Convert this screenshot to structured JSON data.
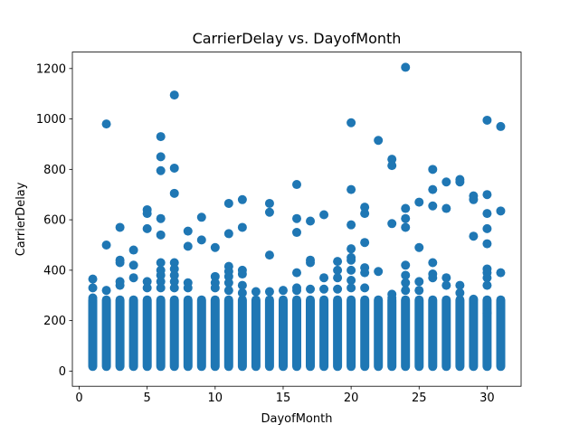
{
  "chart_data": {
    "type": "scatter",
    "title": "CarrierDelay vs. DayofMonth",
    "xlabel": "DayofMonth",
    "ylabel": "CarrierDelay",
    "xlim": [
      -0.5,
      32.5
    ],
    "ylim": [
      -60.3,
      1265.3
    ],
    "x_ticks": [
      0,
      5,
      10,
      15,
      20,
      25,
      30
    ],
    "y_ticks": [
      0,
      200,
      400,
      600,
      800,
      1000,
      1200
    ],
    "grid": false,
    "marker_color": "#1f77b4",
    "series": [
      {
        "points": [
          [
            1,
            290
          ],
          [
            1,
            330
          ],
          [
            1,
            365
          ],
          [
            2,
            980
          ],
          [
            2,
            500
          ],
          [
            2,
            320
          ],
          [
            3,
            570
          ],
          [
            3,
            440
          ],
          [
            3,
            430
          ],
          [
            3,
            355
          ],
          [
            3,
            340
          ],
          [
            4,
            480
          ],
          [
            4,
            420
          ],
          [
            4,
            370
          ],
          [
            5,
            640
          ],
          [
            5,
            625
          ],
          [
            5,
            565
          ],
          [
            5,
            355
          ],
          [
            5,
            330
          ],
          [
            6,
            930
          ],
          [
            6,
            850
          ],
          [
            6,
            795
          ],
          [
            6,
            605
          ],
          [
            6,
            540
          ],
          [
            6,
            430
          ],
          [
            6,
            400
          ],
          [
            6,
            380
          ],
          [
            6,
            355
          ],
          [
            6,
            330
          ],
          [
            7,
            1095
          ],
          [
            7,
            805
          ],
          [
            7,
            705
          ],
          [
            7,
            430
          ],
          [
            7,
            405
          ],
          [
            7,
            380
          ],
          [
            7,
            355
          ],
          [
            7,
            330
          ],
          [
            8,
            555
          ],
          [
            8,
            495
          ],
          [
            8,
            350
          ],
          [
            8,
            330
          ],
          [
            9,
            610
          ],
          [
            9,
            520
          ],
          [
            10,
            490
          ],
          [
            10,
            375
          ],
          [
            10,
            350
          ],
          [
            10,
            330
          ],
          [
            11,
            665
          ],
          [
            11,
            545
          ],
          [
            11,
            415
          ],
          [
            11,
            395
          ],
          [
            11,
            375
          ],
          [
            11,
            350
          ],
          [
            11,
            320
          ],
          [
            12,
            680
          ],
          [
            12,
            570
          ],
          [
            12,
            400
          ],
          [
            12,
            385
          ],
          [
            12,
            340
          ],
          [
            12,
            310
          ],
          [
            13,
            315
          ],
          [
            14,
            665
          ],
          [
            14,
            630
          ],
          [
            14,
            460
          ],
          [
            14,
            315
          ],
          [
            15,
            320
          ],
          [
            16,
            740
          ],
          [
            16,
            605
          ],
          [
            16,
            550
          ],
          [
            16,
            390
          ],
          [
            16,
            330
          ],
          [
            16,
            320
          ],
          [
            17,
            595
          ],
          [
            17,
            440
          ],
          [
            17,
            430
          ],
          [
            17,
            325
          ],
          [
            18,
            620
          ],
          [
            18,
            370
          ],
          [
            18,
            325
          ],
          [
            19,
            435
          ],
          [
            19,
            400
          ],
          [
            19,
            370
          ],
          [
            19,
            325
          ],
          [
            20,
            985
          ],
          [
            20,
            720
          ],
          [
            20,
            580
          ],
          [
            20,
            485
          ],
          [
            20,
            450
          ],
          [
            20,
            440
          ],
          [
            20,
            400
          ],
          [
            20,
            360
          ],
          [
            20,
            330
          ],
          [
            21,
            650
          ],
          [
            21,
            625
          ],
          [
            21,
            510
          ],
          [
            21,
            410
          ],
          [
            21,
            390
          ],
          [
            21,
            330
          ],
          [
            22,
            915
          ],
          [
            22,
            395
          ],
          [
            23,
            840
          ],
          [
            23,
            815
          ],
          [
            23,
            585
          ],
          [
            23,
            305
          ],
          [
            23,
            290
          ],
          [
            24,
            1205
          ],
          [
            24,
            645
          ],
          [
            24,
            605
          ],
          [
            24,
            570
          ],
          [
            24,
            420
          ],
          [
            24,
            380
          ],
          [
            24,
            350
          ],
          [
            24,
            320
          ],
          [
            25,
            670
          ],
          [
            25,
            490
          ],
          [
            25,
            355
          ],
          [
            25,
            320
          ],
          [
            26,
            800
          ],
          [
            26,
            720
          ],
          [
            26,
            655
          ],
          [
            26,
            430
          ],
          [
            26,
            385
          ],
          [
            26,
            370
          ],
          [
            27,
            750
          ],
          [
            27,
            645
          ],
          [
            27,
            370
          ],
          [
            27,
            340
          ],
          [
            28,
            760
          ],
          [
            28,
            750
          ],
          [
            28,
            340
          ],
          [
            28,
            310
          ],
          [
            29,
            695
          ],
          [
            29,
            680
          ],
          [
            29,
            535
          ],
          [
            29,
            285
          ],
          [
            30,
            995
          ],
          [
            30,
            700
          ],
          [
            30,
            625
          ],
          [
            30,
            565
          ],
          [
            30,
            505
          ],
          [
            30,
            405
          ],
          [
            30,
            390
          ],
          [
            30,
            370
          ],
          [
            30,
            340
          ],
          [
            30,
            230
          ],
          [
            31,
            970
          ],
          [
            31,
            635
          ],
          [
            31,
            390
          ],
          [
            31,
            265
          ]
        ]
      }
    ]
  }
}
